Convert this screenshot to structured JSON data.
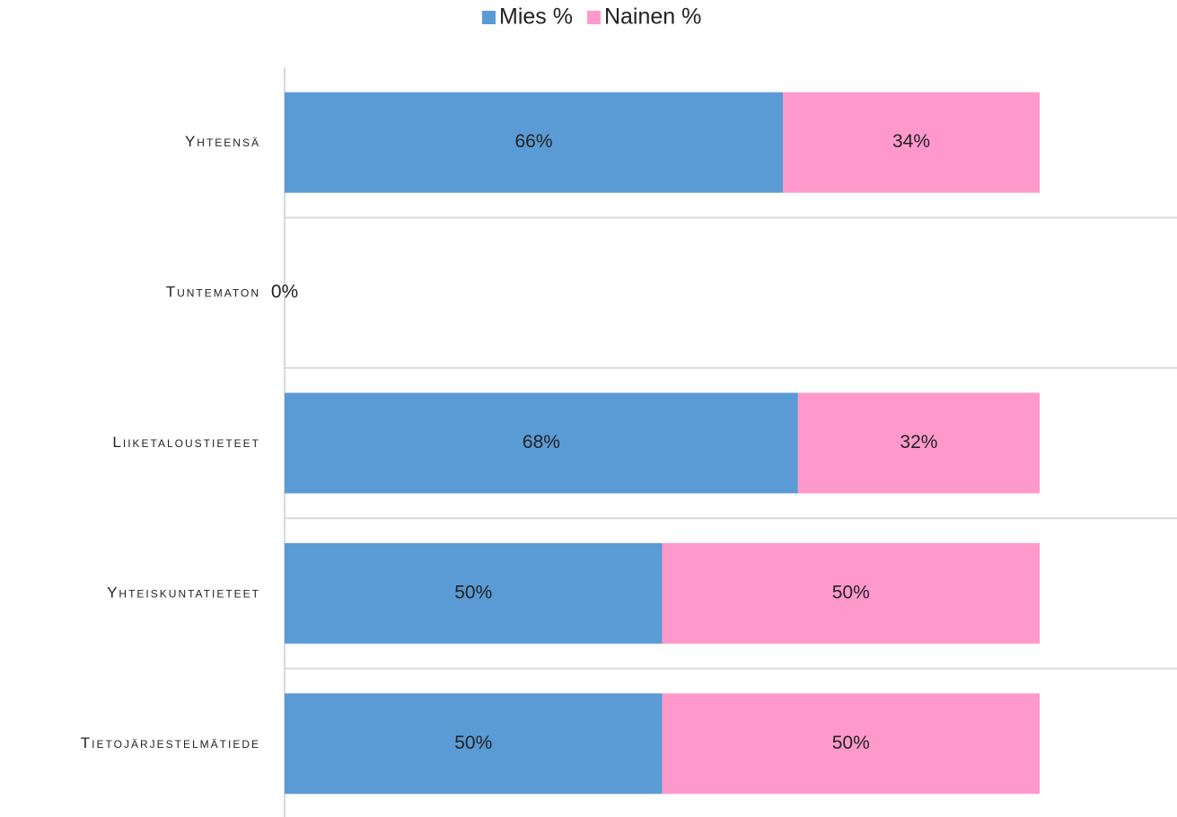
{
  "chart_data": {
    "type": "stacked_barh",
    "categories": [
      "Yhteensä",
      "Tuntematon",
      "Liiketaloustieteet",
      "Yhteiskuntatieteet",
      "Tietojärjestelmätiede"
    ],
    "series": [
      {
        "name": "Mies %",
        "color": "#5b9bd5",
        "values": [
          66,
          0,
          68,
          50,
          50
        ],
        "value_labels": [
          "66%",
          "0%",
          "68%",
          "50%",
          "50%"
        ]
      },
      {
        "name": "Nainen %",
        "color": "#ff99cc",
        "values": [
          34,
          null,
          32,
          50,
          50
        ],
        "value_labels": [
          "34%",
          null,
          "32%",
          "50%",
          "50%"
        ]
      }
    ],
    "xlim": [
      0,
      100
    ],
    "legend": "top"
  }
}
